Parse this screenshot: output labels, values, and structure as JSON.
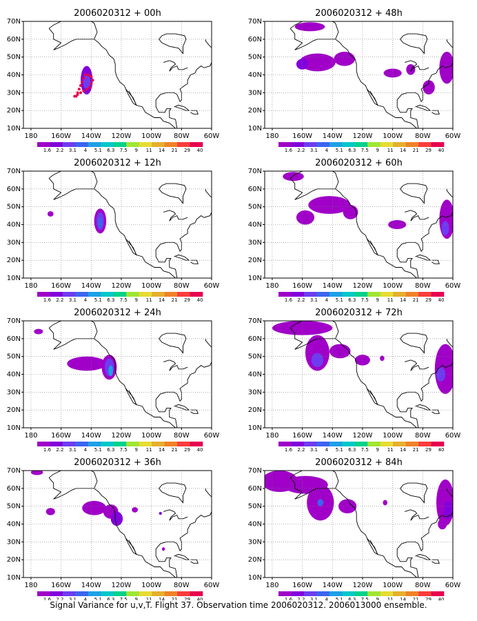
{
  "figure": {
    "caption": "Signal Variance for u,v,T. Flight 37. Observation time 2006020312. 2006013000 ensemble."
  },
  "lat_labels": [
    "70N",
    "60N",
    "50N",
    "40N",
    "30N",
    "20N",
    "10N"
  ],
  "lon_labels": [
    "180",
    "160W",
    "140W",
    "120W",
    "100W",
    "80W",
    "60W"
  ],
  "colorbar": {
    "labels": [
      "1.6",
      "2.2",
      "3.1",
      "4",
      "5.1",
      "6.3",
      "7.5",
      "9",
      "11",
      "14",
      "21",
      "29",
      "40"
    ],
    "colors": [
      "#a000c8",
      "#8200dc",
      "#6e3cf0",
      "#3c64f0",
      "#1ea0e6",
      "#00c8c8",
      "#00d28c",
      "#a0e632",
      "#e6dc32",
      "#e6af2d",
      "#f08228",
      "#fa3c3c",
      "#e60050"
    ]
  },
  "panels": [
    {
      "title": "2006020312 + 00h",
      "forecast_hour": 0,
      "blobs": [
        {
          "lon": -143,
          "lat": 37,
          "rlon": 4,
          "rlat": 8,
          "level": 1
        },
        {
          "lon": -143,
          "lat": 36,
          "rlon": 2.5,
          "rlat": 4,
          "level": 2
        }
      ],
      "observation_track": [
        [
          -150,
          28
        ],
        [
          -149,
          30
        ],
        [
          -148,
          32
        ],
        [
          -147,
          34
        ],
        [
          -146,
          36
        ],
        [
          -145,
          38
        ],
        [
          -144,
          40
        ],
        [
          -142,
          40
        ],
        [
          -140,
          39
        ],
        [
          -139,
          37
        ],
        [
          -140,
          35
        ],
        [
          -141,
          33
        ],
        [
          -143,
          32
        ],
        [
          -145,
          31
        ],
        [
          -147,
          30
        ],
        [
          -149,
          29
        ],
        [
          -151,
          28
        ]
      ]
    },
    {
      "title": "2006020312 + 48h",
      "forecast_hour": 48,
      "blobs": [
        {
          "lon": -150,
          "lat": 47,
          "rlon": 12,
          "rlat": 5,
          "level": 0
        },
        {
          "lon": -132,
          "lat": 49,
          "rlon": 7,
          "rlat": 4,
          "level": 0
        },
        {
          "lon": -160,
          "lat": 46,
          "rlon": 4,
          "rlat": 3,
          "level": 1
        },
        {
          "lon": -100,
          "lat": 41,
          "rlon": 6,
          "rlat": 2.5,
          "level": 0
        },
        {
          "lon": -88,
          "lat": 43,
          "rlon": 3,
          "rlat": 3,
          "level": 0
        },
        {
          "lon": -76,
          "lat": 33,
          "rlon": 4,
          "rlat": 4,
          "level": 0
        },
        {
          "lon": -64,
          "lat": 44,
          "rlon": 5,
          "rlat": 9,
          "level": 0
        },
        {
          "lon": -155,
          "lat": 67,
          "rlon": 10,
          "rlat": 2.5,
          "level": 0
        }
      ]
    },
    {
      "title": "2006020312 + 12h",
      "forecast_hour": 12,
      "blobs": [
        {
          "lon": -134,
          "lat": 42,
          "rlon": 4,
          "rlat": 7,
          "level": 0
        },
        {
          "lon": -134,
          "lat": 42,
          "rlon": 2.5,
          "rlat": 5,
          "level": 2
        },
        {
          "lon": -134,
          "lat": 41,
          "rlon": 1.3,
          "rlat": 3,
          "level": 3
        },
        {
          "lon": -167,
          "lat": 46,
          "rlon": 2,
          "rlat": 1.5,
          "level": 0
        }
      ]
    },
    {
      "title": "2006020312 + 60h",
      "forecast_hour": 60,
      "blobs": [
        {
          "lon": -142,
          "lat": 51,
          "rlon": 14,
          "rlat": 5,
          "level": 0
        },
        {
          "lon": -158,
          "lat": 44,
          "rlon": 6,
          "rlat": 4,
          "level": 0
        },
        {
          "lon": -128,
          "lat": 47,
          "rlon": 5,
          "rlat": 4,
          "level": 0
        },
        {
          "lon": -166,
          "lat": 67,
          "rlon": 7,
          "rlat": 2.5,
          "level": 0
        },
        {
          "lon": -97,
          "lat": 40,
          "rlon": 6,
          "rlat": 2.5,
          "level": 0
        },
        {
          "lon": -64,
          "lat": 43,
          "rlon": 5,
          "rlat": 11,
          "level": 0
        },
        {
          "lon": -65,
          "lat": 38,
          "rlon": 2.5,
          "rlat": 4,
          "level": 2
        }
      ]
    },
    {
      "title": "2006020312 + 24h",
      "forecast_hour": 24,
      "blobs": [
        {
          "lon": -143,
          "lat": 46,
          "rlon": 13,
          "rlat": 4,
          "level": 0
        },
        {
          "lon": -128,
          "lat": 44,
          "rlon": 5,
          "rlat": 7,
          "level": 0
        },
        {
          "lon": -128,
          "lat": 44,
          "rlon": 3,
          "rlat": 5,
          "level": 2
        },
        {
          "lon": -127,
          "lat": 42,
          "rlon": 1.5,
          "rlat": 3,
          "level": 4
        },
        {
          "lon": -175,
          "lat": 64,
          "rlon": 3,
          "rlat": 1.5,
          "level": 0
        }
      ]
    },
    {
      "title": "2006020312 + 72h",
      "forecast_hour": 72,
      "blobs": [
        {
          "lon": -160,
          "lat": 66,
          "rlon": 20,
          "rlat": 4,
          "level": 0
        },
        {
          "lon": -150,
          "lat": 52,
          "rlon": 8,
          "rlat": 10,
          "level": 0
        },
        {
          "lon": -150,
          "lat": 48,
          "rlon": 4,
          "rlat": 4,
          "level": 2
        },
        {
          "lon": -135,
          "lat": 53,
          "rlon": 7,
          "rlat": 4,
          "level": 0
        },
        {
          "lon": -120,
          "lat": 48,
          "rlon": 5,
          "rlat": 3,
          "level": 0
        },
        {
          "lon": -107,
          "lat": 49,
          "rlon": 1.5,
          "rlat": 1.5,
          "level": 0
        },
        {
          "lon": -65,
          "lat": 43,
          "rlon": 7,
          "rlat": 14,
          "level": 0
        },
        {
          "lon": -68,
          "lat": 40,
          "rlon": 3,
          "rlat": 4,
          "level": 2
        }
      ]
    },
    {
      "title": "2006020312 + 36h",
      "forecast_hour": 36,
      "blobs": [
        {
          "lon": -176,
          "lat": 69,
          "rlon": 4,
          "rlat": 1.5,
          "level": 0
        },
        {
          "lon": -167,
          "lat": 47,
          "rlon": 3,
          "rlat": 2,
          "level": 0
        },
        {
          "lon": -138,
          "lat": 49,
          "rlon": 8,
          "rlat": 4,
          "level": 0
        },
        {
          "lon": -127,
          "lat": 47,
          "rlon": 5,
          "rlat": 4,
          "level": 0
        },
        {
          "lon": -123,
          "lat": 43,
          "rlon": 4,
          "rlat": 4,
          "level": 1
        },
        {
          "lon": -111,
          "lat": 48,
          "rlon": 2,
          "rlat": 1.5,
          "level": 0
        },
        {
          "lon": -94,
          "lat": 46,
          "rlon": 1,
          "rlat": 0.8,
          "level": 1
        },
        {
          "lon": -92,
          "lat": 26,
          "rlon": 1,
          "rlat": 1,
          "level": 0
        }
      ]
    },
    {
      "title": "2006020312 + 84h",
      "forecast_hour": 84,
      "blobs": [
        {
          "lon": -175,
          "lat": 64,
          "rlon": 12,
          "rlat": 6,
          "level": 0
        },
        {
          "lon": -158,
          "lat": 62,
          "rlon": 15,
          "rlat": 5,
          "level": 0
        },
        {
          "lon": -148,
          "lat": 52,
          "rlon": 9,
          "rlat": 10,
          "level": 0
        },
        {
          "lon": -148,
          "lat": 52,
          "rlon": 2,
          "rlat": 2,
          "level": 3
        },
        {
          "lon": -130,
          "lat": 50,
          "rlon": 6,
          "rlat": 4,
          "level": 0
        },
        {
          "lon": -105,
          "lat": 52,
          "rlon": 1.5,
          "rlat": 1.5,
          "level": 0
        },
        {
          "lon": -65,
          "lat": 52,
          "rlon": 6,
          "rlat": 13,
          "level": 0
        },
        {
          "lon": -63,
          "lat": 48,
          "rlon": 3,
          "rlat": 5,
          "level": 1
        },
        {
          "lon": -67,
          "lat": 40,
          "rlon": 3,
          "rlat": 3,
          "level": 0
        }
      ]
    }
  ],
  "coastlines": {
    "north_america": [
      [
        -168,
        66
      ],
      [
        -165,
        68
      ],
      [
        -160,
        70
      ],
      [
        -150,
        70
      ],
      [
        -140,
        70
      ],
      [
        -138,
        69
      ],
      [
        -136,
        64
      ],
      [
        -138,
        60
      ],
      [
        -145,
        60
      ],
      [
        -150,
        60
      ],
      [
        -153,
        59
      ],
      [
        -157,
        57
      ],
      [
        -162,
        55
      ],
      [
        -165,
        54
      ],
      [
        -160,
        58
      ],
      [
        -165,
        60
      ],
      [
        -165,
        63
      ],
      [
        -168,
        66
      ]
    ],
    "west_coast": [
      [
        -138,
        60
      ],
      [
        -135,
        58
      ],
      [
        -133,
        56
      ],
      [
        -130,
        54
      ],
      [
        -128,
        51
      ],
      [
        -125,
        49
      ],
      [
        -124,
        46
      ],
      [
        -124,
        42
      ],
      [
        -123,
        39
      ],
      [
        -121,
        36
      ],
      [
        -118,
        34
      ],
      [
        -117,
        32
      ],
      [
        -114,
        29
      ],
      [
        -112,
        27
      ],
      [
        -110,
        23
      ],
      [
        -106,
        22
      ],
      [
        -104,
        19
      ],
      [
        -98,
        16
      ],
      [
        -94,
        16
      ],
      [
        -92,
        14
      ],
      [
        -88,
        13
      ],
      [
        -84,
        10
      ],
      [
        -80,
        9
      ],
      [
        -78,
        8
      ]
    ],
    "gulf_coast": [
      [
        -75,
        10
      ],
      [
        -77,
        9
      ],
      [
        -80,
        8
      ],
      [
        -83,
        10
      ],
      [
        -84,
        15
      ],
      [
        -88,
        16
      ],
      [
        -88,
        20
      ],
      [
        -87,
        21
      ],
      [
        -90,
        21
      ],
      [
        -91,
        19
      ],
      [
        -95,
        19
      ],
      [
        -97,
        22
      ],
      [
        -97,
        26
      ],
      [
        -94,
        29
      ],
      [
        -90,
        30
      ],
      [
        -88,
        30
      ],
      [
        -85,
        30
      ],
      [
        -83,
        29
      ],
      [
        -82,
        27
      ],
      [
        -81,
        25
      ],
      [
        -80,
        26
      ],
      [
        -80,
        30
      ],
      [
        -81,
        32
      ],
      [
        -78,
        34
      ],
      [
        -76,
        35
      ],
      [
        -76,
        37
      ],
      [
        -74,
        40
      ],
      [
        -71,
        41
      ],
      [
        -70,
        43
      ],
      [
        -67,
        45
      ],
      [
        -65,
        44
      ],
      [
        -61,
        45
      ],
      [
        -60,
        47
      ],
      [
        -56,
        48
      ],
      [
        -55,
        52
      ],
      [
        -58,
        54
      ],
      [
        -61,
        56
      ],
      [
        -64,
        59
      ],
      [
        -64,
        60
      ]
    ],
    "hudson_bay": [
      [
        -95,
        60
      ],
      [
        -93,
        58
      ],
      [
        -88,
        56
      ],
      [
        -82,
        55
      ],
      [
        -79,
        52
      ],
      [
        -79,
        56
      ],
      [
        -77,
        60
      ],
      [
        -78,
        62
      ],
      [
        -84,
        63
      ],
      [
        -90,
        63
      ],
      [
        -93,
        62
      ],
      [
        -95,
        60
      ]
    ],
    "baja": [
      [
        -117,
        32
      ],
      [
        -116,
        30
      ],
      [
        -114,
        27
      ],
      [
        -112,
        24
      ],
      [
        -110,
        23
      ],
      [
        -111,
        25
      ],
      [
        -113,
        28
      ],
      [
        -115,
        31
      ]
    ],
    "cuba": [
      [
        -85,
        22
      ],
      [
        -82,
        23
      ],
      [
        -78,
        22
      ],
      [
        -75,
        20
      ],
      [
        -77,
        20
      ],
      [
        -80,
        21
      ],
      [
        -84,
        22
      ]
    ],
    "hispaniola": [
      [
        -74,
        20
      ],
      [
        -70,
        20
      ],
      [
        -69,
        18
      ],
      [
        -72,
        18
      ],
      [
        -74,
        19
      ]
    ],
    "great_lakes": [
      [
        -92,
        47
      ],
      [
        -88,
        48
      ],
      [
        -85,
        47
      ],
      [
        -84,
        46
      ],
      [
        -87,
        44
      ],
      [
        -88,
        42
      ],
      [
        -86,
        44
      ],
      [
        -83,
        45
      ],
      [
        -82,
        43
      ],
      [
        -79,
        43
      ],
      [
        -76,
        44
      ]
    ]
  }
}
